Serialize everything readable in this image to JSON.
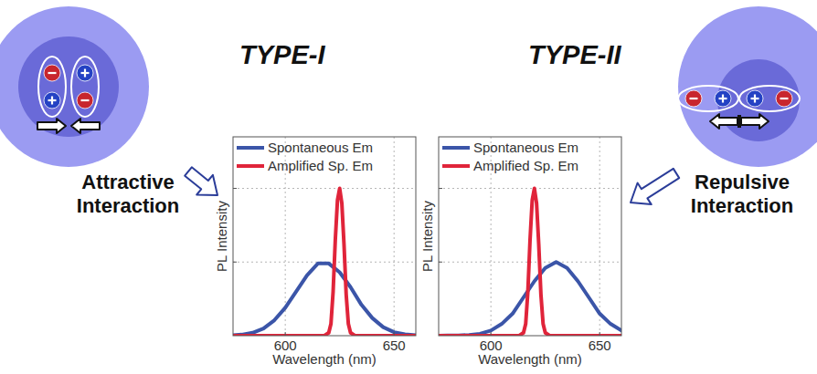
{
  "chart_data": [
    {
      "type": "line",
      "title": "TYPE-I",
      "annotations": [
        "Attractive Interaction"
      ],
      "x_label": "Wavelength (nm)",
      "y_label": "PL Intensity",
      "xlim": [
        576,
        660
      ],
      "xticks": [
        600,
        650
      ],
      "ylim": [
        0,
        1.35
      ],
      "yticks": [
        0.5,
        1
      ],
      "grid": true,
      "tick_labels": "x",
      "legend": "upper left",
      "series": [
        {
          "name": "Spontaneous Em",
          "color": "#3b55a8",
          "x": [
            576,
            580,
            585,
            590,
            595,
            600,
            605,
            610,
            615,
            620,
            625,
            630,
            635,
            640,
            645,
            650,
            655,
            660
          ],
          "values": [
            0.003,
            0.007,
            0.02,
            0.049,
            0.105,
            0.19,
            0.3,
            0.41,
            0.49,
            0.49,
            0.43,
            0.33,
            0.21,
            0.12,
            0.058,
            0.024,
            0.009,
            0.003
          ]
        },
        {
          "name": "Amplified Sp. Em",
          "color": "#e0243a",
          "x": [
            576,
            610,
            618,
            620,
            621,
            622,
            623,
            624,
            625,
            626,
            627,
            628,
            629,
            630,
            632,
            640,
            660
          ],
          "values": [
            0,
            0,
            0,
            0.02,
            0.08,
            0.3,
            0.65,
            0.92,
            1.0,
            0.9,
            0.62,
            0.28,
            0.08,
            0.02,
            0,
            0,
            0
          ]
        }
      ]
    },
    {
      "type": "line",
      "title": "TYPE-II",
      "annotations": [
        "Repulsive Interaction"
      ],
      "x_label": "Wavelength (nm)",
      "y_label": "PL Intensity",
      "xlim": [
        576,
        660
      ],
      "xticks": [
        600,
        650
      ],
      "ylim": [
        0,
        1.35
      ],
      "yticks": [
        0.5,
        1
      ],
      "grid": true,
      "tick_labels": "x",
      "legend": "upper left",
      "series": [
        {
          "name": "Spontaneous Em",
          "color": "#3b55a8",
          "x": [
            576,
            580,
            585,
            590,
            595,
            600,
            605,
            610,
            615,
            620,
            625,
            630,
            635,
            640,
            645,
            650,
            655,
            660
          ],
          "values": [
            0,
            0.001,
            0.002,
            0.005,
            0.013,
            0.035,
            0.08,
            0.15,
            0.26,
            0.37,
            0.46,
            0.5,
            0.46,
            0.37,
            0.26,
            0.15,
            0.08,
            0.035
          ]
        },
        {
          "name": "Amplified Sp. Em",
          "color": "#e0243a",
          "x": [
            576,
            605,
            613,
            615,
            616,
            617,
            618,
            619,
            620,
            621,
            622,
            623,
            624,
            625,
            627,
            640,
            660
          ],
          "values": [
            0,
            0,
            0,
            0.02,
            0.08,
            0.3,
            0.65,
            0.92,
            1.0,
            0.9,
            0.62,
            0.28,
            0.08,
            0.02,
            0,
            0,
            0
          ]
        }
      ]
    }
  ]
}
